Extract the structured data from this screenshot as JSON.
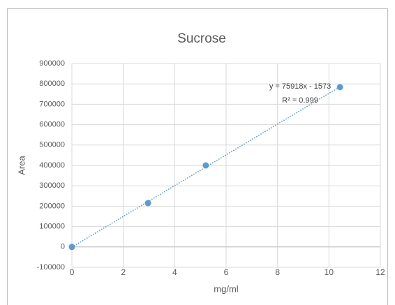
{
  "chart_data": {
    "type": "scatter",
    "title": "Sucrose",
    "x_label": "mg/ml",
    "y_label": "Area",
    "series": [
      {
        "name": "Sucrose",
        "color": "#5b9bd5",
        "x": [
          0,
          2.96,
          5.21,
          10.43
        ],
        "values": [
          0,
          215000,
          400000,
          784000
        ]
      }
    ],
    "trendline": {
      "equation": "y = 75918x - 1573",
      "r_squared": "R² = 0.999",
      "style": "dotted"
    },
    "xlim": [
      0,
      12
    ],
    "xticks": [
      0,
      2,
      4,
      6,
      8,
      10,
      12
    ],
    "ylim": [
      -100000,
      900000
    ],
    "yticks": [
      -100000,
      0,
      100000,
      200000,
      300000,
      400000,
      500000,
      600000,
      700000,
      800000,
      900000
    ],
    "grid": true
  }
}
